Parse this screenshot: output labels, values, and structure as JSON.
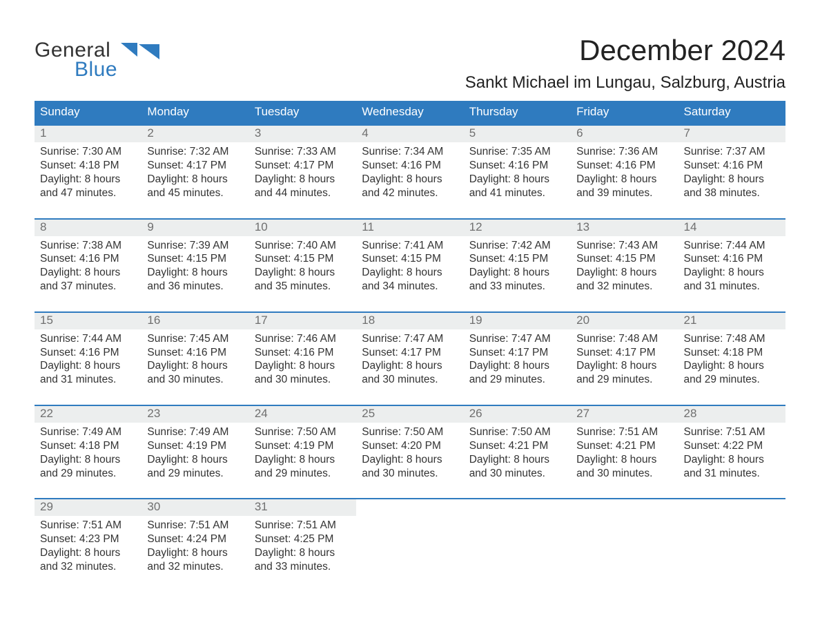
{
  "brand": {
    "line1": "General",
    "line2": "Blue",
    "accent": "#2f7bbf"
  },
  "title": "December 2024",
  "location": "Sankt Michael im Lungau, Salzburg, Austria",
  "colors": {
    "header_bg": "#2f7bbf",
    "header_text": "#ffffff",
    "row_border": "#2f7bbf",
    "daynum_bg": "#eceeee",
    "daynum_text": "#6f6f6f",
    "body_text": "#333333",
    "page_bg": "#ffffff"
  },
  "weekdays": [
    "Sunday",
    "Monday",
    "Tuesday",
    "Wednesday",
    "Thursday",
    "Friday",
    "Saturday"
  ],
  "weeks": [
    [
      {
        "n": "1",
        "sunrise": "Sunrise: 7:30 AM",
        "sunset": "Sunset: 4:18 PM",
        "d1": "Daylight: 8 hours",
        "d2": "and 47 minutes."
      },
      {
        "n": "2",
        "sunrise": "Sunrise: 7:32 AM",
        "sunset": "Sunset: 4:17 PM",
        "d1": "Daylight: 8 hours",
        "d2": "and 45 minutes."
      },
      {
        "n": "3",
        "sunrise": "Sunrise: 7:33 AM",
        "sunset": "Sunset: 4:17 PM",
        "d1": "Daylight: 8 hours",
        "d2": "and 44 minutes."
      },
      {
        "n": "4",
        "sunrise": "Sunrise: 7:34 AM",
        "sunset": "Sunset: 4:16 PM",
        "d1": "Daylight: 8 hours",
        "d2": "and 42 minutes."
      },
      {
        "n": "5",
        "sunrise": "Sunrise: 7:35 AM",
        "sunset": "Sunset: 4:16 PM",
        "d1": "Daylight: 8 hours",
        "d2": "and 41 minutes."
      },
      {
        "n": "6",
        "sunrise": "Sunrise: 7:36 AM",
        "sunset": "Sunset: 4:16 PM",
        "d1": "Daylight: 8 hours",
        "d2": "and 39 minutes."
      },
      {
        "n": "7",
        "sunrise": "Sunrise: 7:37 AM",
        "sunset": "Sunset: 4:16 PM",
        "d1": "Daylight: 8 hours",
        "d2": "and 38 minutes."
      }
    ],
    [
      {
        "n": "8",
        "sunrise": "Sunrise: 7:38 AM",
        "sunset": "Sunset: 4:16 PM",
        "d1": "Daylight: 8 hours",
        "d2": "and 37 minutes."
      },
      {
        "n": "9",
        "sunrise": "Sunrise: 7:39 AM",
        "sunset": "Sunset: 4:15 PM",
        "d1": "Daylight: 8 hours",
        "d2": "and 36 minutes."
      },
      {
        "n": "10",
        "sunrise": "Sunrise: 7:40 AM",
        "sunset": "Sunset: 4:15 PM",
        "d1": "Daylight: 8 hours",
        "d2": "and 35 minutes."
      },
      {
        "n": "11",
        "sunrise": "Sunrise: 7:41 AM",
        "sunset": "Sunset: 4:15 PM",
        "d1": "Daylight: 8 hours",
        "d2": "and 34 minutes."
      },
      {
        "n": "12",
        "sunrise": "Sunrise: 7:42 AM",
        "sunset": "Sunset: 4:15 PM",
        "d1": "Daylight: 8 hours",
        "d2": "and 33 minutes."
      },
      {
        "n": "13",
        "sunrise": "Sunrise: 7:43 AM",
        "sunset": "Sunset: 4:15 PM",
        "d1": "Daylight: 8 hours",
        "d2": "and 32 minutes."
      },
      {
        "n": "14",
        "sunrise": "Sunrise: 7:44 AM",
        "sunset": "Sunset: 4:16 PM",
        "d1": "Daylight: 8 hours",
        "d2": "and 31 minutes."
      }
    ],
    [
      {
        "n": "15",
        "sunrise": "Sunrise: 7:44 AM",
        "sunset": "Sunset: 4:16 PM",
        "d1": "Daylight: 8 hours",
        "d2": "and 31 minutes."
      },
      {
        "n": "16",
        "sunrise": "Sunrise: 7:45 AM",
        "sunset": "Sunset: 4:16 PM",
        "d1": "Daylight: 8 hours",
        "d2": "and 30 minutes."
      },
      {
        "n": "17",
        "sunrise": "Sunrise: 7:46 AM",
        "sunset": "Sunset: 4:16 PM",
        "d1": "Daylight: 8 hours",
        "d2": "and 30 minutes."
      },
      {
        "n": "18",
        "sunrise": "Sunrise: 7:47 AM",
        "sunset": "Sunset: 4:17 PM",
        "d1": "Daylight: 8 hours",
        "d2": "and 30 minutes."
      },
      {
        "n": "19",
        "sunrise": "Sunrise: 7:47 AM",
        "sunset": "Sunset: 4:17 PM",
        "d1": "Daylight: 8 hours",
        "d2": "and 29 minutes."
      },
      {
        "n": "20",
        "sunrise": "Sunrise: 7:48 AM",
        "sunset": "Sunset: 4:17 PM",
        "d1": "Daylight: 8 hours",
        "d2": "and 29 minutes."
      },
      {
        "n": "21",
        "sunrise": "Sunrise: 7:48 AM",
        "sunset": "Sunset: 4:18 PM",
        "d1": "Daylight: 8 hours",
        "d2": "and 29 minutes."
      }
    ],
    [
      {
        "n": "22",
        "sunrise": "Sunrise: 7:49 AM",
        "sunset": "Sunset: 4:18 PM",
        "d1": "Daylight: 8 hours",
        "d2": "and 29 minutes."
      },
      {
        "n": "23",
        "sunrise": "Sunrise: 7:49 AM",
        "sunset": "Sunset: 4:19 PM",
        "d1": "Daylight: 8 hours",
        "d2": "and 29 minutes."
      },
      {
        "n": "24",
        "sunrise": "Sunrise: 7:50 AM",
        "sunset": "Sunset: 4:19 PM",
        "d1": "Daylight: 8 hours",
        "d2": "and 29 minutes."
      },
      {
        "n": "25",
        "sunrise": "Sunrise: 7:50 AM",
        "sunset": "Sunset: 4:20 PM",
        "d1": "Daylight: 8 hours",
        "d2": "and 30 minutes."
      },
      {
        "n": "26",
        "sunrise": "Sunrise: 7:50 AM",
        "sunset": "Sunset: 4:21 PM",
        "d1": "Daylight: 8 hours",
        "d2": "and 30 minutes."
      },
      {
        "n": "27",
        "sunrise": "Sunrise: 7:51 AM",
        "sunset": "Sunset: 4:21 PM",
        "d1": "Daylight: 8 hours",
        "d2": "and 30 minutes."
      },
      {
        "n": "28",
        "sunrise": "Sunrise: 7:51 AM",
        "sunset": "Sunset: 4:22 PM",
        "d1": "Daylight: 8 hours",
        "d2": "and 31 minutes."
      }
    ],
    [
      {
        "n": "29",
        "sunrise": "Sunrise: 7:51 AM",
        "sunset": "Sunset: 4:23 PM",
        "d1": "Daylight: 8 hours",
        "d2": "and 32 minutes."
      },
      {
        "n": "30",
        "sunrise": "Sunrise: 7:51 AM",
        "sunset": "Sunset: 4:24 PM",
        "d1": "Daylight: 8 hours",
        "d2": "and 32 minutes."
      },
      {
        "n": "31",
        "sunrise": "Sunrise: 7:51 AM",
        "sunset": "Sunset: 4:25 PM",
        "d1": "Daylight: 8 hours",
        "d2": "and 33 minutes."
      },
      null,
      null,
      null,
      null
    ]
  ]
}
